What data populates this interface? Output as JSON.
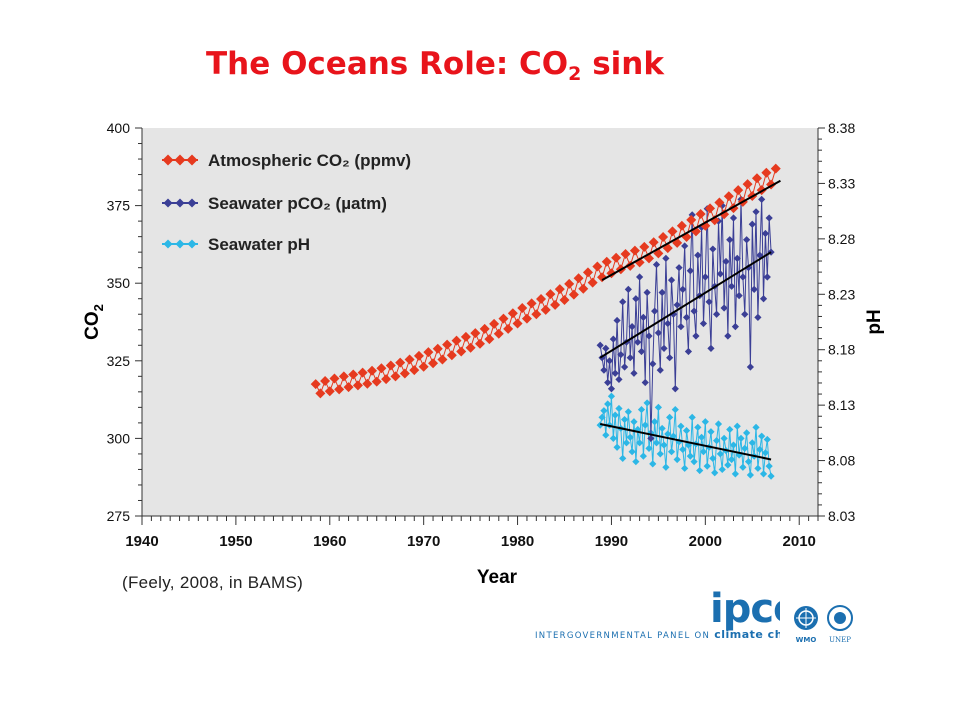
{
  "slide": {
    "title_main": "The Oceans Role: CO",
    "title_sub": "2",
    "title_end": " sink",
    "citation": "(Feely, 2008, in BAMS)"
  },
  "colors": {
    "title": "#e8141b",
    "plot_bg": "#e5e5e5",
    "atm_co2": "#e63a1f",
    "sea_pco2": "#3b3f96",
    "sea_ph": "#2cb7e6",
    "trend": "#000000",
    "ipcc_blue": "#1b6fb0"
  },
  "logos": {
    "ipcc_mark": "ipcc",
    "ipcc_line_1": "INTERGOVERNMENTAL PANEL ON ",
    "ipcc_line_2": "climate change",
    "wmo": "WMO",
    "unep": "UNEP"
  },
  "chart_data": {
    "type": "line",
    "xlabel": "Year",
    "ylabel_left": "CO",
    "ylabel_left_sub": "2",
    "ylabel_right": "pH",
    "xlim": [
      1940,
      2012
    ],
    "ylim_left": [
      275,
      400
    ],
    "ylim_right": [
      8.03,
      8.38
    ],
    "x_ticks": [
      1940,
      1950,
      1960,
      1970,
      1980,
      1990,
      2000,
      2010
    ],
    "y_ticks_left": [
      275,
      300,
      325,
      350,
      375,
      400
    ],
    "y_ticks_right": [
      "8.03",
      "8.08",
      "8.13",
      "8.18",
      "8.23",
      "8.28",
      "8.33",
      "8.38"
    ],
    "grid": false,
    "legend_position": "top-left",
    "series": [
      {
        "name": "Atmospheric CO₂ (ppmv)",
        "axis": "left",
        "marker": "diamond",
        "x": [
          1958.5,
          1959,
          1959.5,
          1960,
          1960.5,
          1961,
          1961.5,
          1962,
          1962.5,
          1963,
          1963.5,
          1964,
          1964.5,
          1965,
          1965.5,
          1966,
          1966.5,
          1967,
          1967.5,
          1968,
          1968.5,
          1969,
          1969.5,
          1970,
          1970.5,
          1971,
          1971.5,
          1972,
          1972.5,
          1973,
          1973.5,
          1974,
          1974.5,
          1975,
          1975.5,
          1976,
          1976.5,
          1977,
          1977.5,
          1978,
          1978.5,
          1979,
          1979.5,
          1980,
          1980.5,
          1981,
          1981.5,
          1982,
          1982.5,
          1983,
          1983.5,
          1984,
          1984.5,
          1985,
          1985.5,
          1986,
          1986.5,
          1987,
          1987.5,
          1988,
          1988.5,
          1989,
          1989.5,
          1990,
          1990.5,
          1991,
          1991.5,
          1992,
          1992.5,
          1993,
          1993.5,
          1994,
          1994.5,
          1995,
          1995.5,
          1996,
          1996.5,
          1997,
          1997.5,
          1998,
          1998.5,
          1999,
          1999.5,
          2000,
          2000.5,
          2001,
          2001.5,
          2002,
          2002.5,
          2003,
          2003.5,
          2004,
          2004.5,
          2005,
          2005.5,
          2006,
          2006.5,
          2007,
          2007.5
        ],
        "y": [
          317.5,
          314.5,
          318.5,
          315.2,
          319.3,
          315.8,
          320.0,
          316.5,
          320.6,
          317.1,
          321.2,
          317.6,
          321.8,
          318.3,
          322.6,
          319.1,
          323.5,
          320.0,
          324.4,
          320.9,
          325.4,
          322.0,
          326.6,
          323.1,
          327.8,
          324.2,
          328.9,
          325.4,
          330.2,
          326.8,
          331.5,
          328.0,
          332.7,
          329.2,
          333.9,
          330.5,
          335.3,
          332.0,
          336.9,
          333.7,
          338.6,
          335.3,
          340.3,
          337.0,
          342.0,
          338.6,
          343.5,
          340.0,
          344.9,
          341.4,
          346.5,
          343.0,
          348.1,
          344.6,
          349.8,
          346.3,
          351.6,
          348.2,
          353.5,
          350.2,
          355.4,
          351.9,
          356.9,
          353.2,
          358.2,
          354.5,
          359.4,
          355.6,
          360.5,
          356.7,
          361.7,
          358.0,
          363.2,
          359.6,
          364.9,
          361.3,
          366.7,
          363.0,
          368.5,
          364.9,
          370.4,
          366.7,
          372.3,
          368.5,
          374.1,
          370.3,
          376.0,
          372.2,
          378.0,
          374.2,
          380.0,
          376.2,
          381.9,
          378.1,
          383.8,
          380.0,
          385.6,
          381.8,
          386.9
        ]
      },
      {
        "name": "Seawater pCO₂ (µatm)",
        "axis": "left",
        "marker": "diamond",
        "x": [
          1988.8,
          1989,
          1989.2,
          1989.4,
          1989.6,
          1989.8,
          1990,
          1990.2,
          1990.4,
          1990.6,
          1990.8,
          1991,
          1991.2,
          1991.4,
          1991.6,
          1991.8,
          1992,
          1992.2,
          1992.4,
          1992.6,
          1992.8,
          1993,
          1993.2,
          1993.4,
          1993.6,
          1993.8,
          1994,
          1994.2,
          1994.4,
          1994.6,
          1994.8,
          1995,
          1995.2,
          1995.4,
          1995.6,
          1995.8,
          1996,
          1996.2,
          1996.4,
          1996.6,
          1996.8,
          1997,
          1997.2,
          1997.4,
          1997.6,
          1997.8,
          1998,
          1998.2,
          1998.4,
          1998.6,
          1998.8,
          1999,
          1999.2,
          1999.4,
          1999.6,
          1999.8,
          2000,
          2000.2,
          2000.4,
          2000.6,
          2000.8,
          2001,
          2001.2,
          2001.4,
          2001.6,
          2001.8,
          2002,
          2002.2,
          2002.4,
          2002.6,
          2002.8,
          2003,
          2003.2,
          2003.4,
          2003.6,
          2003.8,
          2004,
          2004.2,
          2004.4,
          2004.6,
          2004.8,
          2005,
          2005.2,
          2005.4,
          2005.6,
          2005.8,
          2006,
          2006.2,
          2006.4,
          2006.6,
          2006.8,
          2007
        ],
        "y": [
          330,
          326,
          322,
          329,
          318,
          325,
          316,
          332,
          321,
          338,
          319,
          327,
          344,
          323,
          331,
          348,
          326,
          336,
          321,
          345,
          331,
          352,
          328,
          339,
          318,
          347,
          333,
          300,
          324,
          341,
          356,
          334,
          322,
          347,
          329,
          358,
          337,
          326,
          351,
          340,
          316,
          343,
          355,
          336,
          348,
          362,
          339,
          328,
          354,
          372,
          341,
          333,
          359,
          346,
          368,
          337,
          352,
          374,
          344,
          329,
          361,
          349,
          340,
          370,
          353,
          375,
          342,
          357,
          333,
          364,
          349,
          371,
          336,
          358,
          346,
          377,
          352,
          340,
          364,
          355,
          323,
          369,
          348,
          373,
          339,
          359,
          377,
          345,
          366,
          352,
          371,
          360
        ]
      },
      {
        "name": "Seawater pH",
        "axis": "right",
        "marker": "diamond",
        "x": [
          1988.8,
          1989,
          1989.2,
          1989.4,
          1989.6,
          1989.8,
          1990,
          1990.2,
          1990.4,
          1990.6,
          1990.8,
          1991,
          1991.2,
          1991.4,
          1991.6,
          1991.8,
          1992,
          1992.2,
          1992.4,
          1992.6,
          1992.8,
          1993,
          1993.2,
          1993.4,
          1993.6,
          1993.8,
          1994,
          1994.2,
          1994.4,
          1994.6,
          1994.8,
          1995,
          1995.2,
          1995.4,
          1995.6,
          1995.8,
          1996,
          1996.2,
          1996.4,
          1996.6,
          1996.8,
          1997,
          1997.2,
          1997.4,
          1997.6,
          1997.8,
          1998,
          1998.2,
          1998.4,
          1998.6,
          1998.8,
          1999,
          1999.2,
          1999.4,
          1999.6,
          1999.8,
          2000,
          2000.2,
          2000.4,
          2000.6,
          2000.8,
          2001,
          2001.2,
          2001.4,
          2001.6,
          2001.8,
          2002,
          2002.2,
          2002.4,
          2002.6,
          2002.8,
          2003,
          2003.2,
          2003.4,
          2003.6,
          2003.8,
          2004,
          2004.2,
          2004.4,
          2004.6,
          2004.8,
          2005,
          2005.2,
          2005.4,
          2005.6,
          2005.8,
          2006,
          2006.2,
          2006.4,
          2006.6,
          2006.8,
          2007
        ],
        "y": [
          8.112,
          8.119,
          8.125,
          8.103,
          8.131,
          8.112,
          8.138,
          8.1,
          8.121,
          8.092,
          8.127,
          8.109,
          8.082,
          8.117,
          8.096,
          8.124,
          8.101,
          8.088,
          8.115,
          8.079,
          8.108,
          8.096,
          8.126,
          8.084,
          8.112,
          8.132,
          8.091,
          8.105,
          8.077,
          8.115,
          8.096,
          8.128,
          8.086,
          8.109,
          8.094,
          8.074,
          8.104,
          8.119,
          8.088,
          8.102,
          8.126,
          8.081,
          8.097,
          8.111,
          8.09,
          8.073,
          8.107,
          8.094,
          8.084,
          8.119,
          8.079,
          8.095,
          8.11,
          8.071,
          8.101,
          8.088,
          8.115,
          8.075,
          8.092,
          8.106,
          8.082,
          8.069,
          8.098,
          8.113,
          8.086,
          8.072,
          8.1,
          8.089,
          8.076,
          8.108,
          8.081,
          8.094,
          8.068,
          8.111,
          8.085,
          8.1,
          8.074,
          8.091,
          8.105,
          8.079,
          8.067,
          8.096,
          8.084,
          8.11,
          8.073,
          8.09,
          8.102,
          8.068,
          8.087,
          8.099,
          8.075,
          8.066
        ]
      }
    ],
    "trend_lines": [
      {
        "axis": "left",
        "x": [
          1989,
          2008
        ],
        "y": [
          351,
          383
        ]
      },
      {
        "axis": "left",
        "x": [
          1988.8,
          2007
        ],
        "y": [
          326,
          360
        ]
      },
      {
        "axis": "right",
        "x": [
          1988.8,
          2007
        ],
        "y": [
          8.113,
          8.081
        ]
      }
    ]
  }
}
